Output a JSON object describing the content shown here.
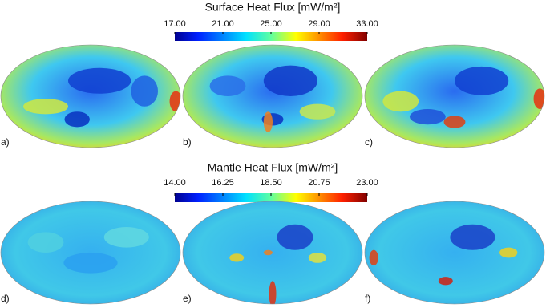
{
  "sections": [
    {
      "title": "Surface Heat Flux [mW/m²]",
      "colorbar_ticks": [
        {
          "value": 17,
          "label": "17.00"
        },
        {
          "value": 21,
          "label": "21.00"
        },
        {
          "value": 25,
          "label": "25.00"
        },
        {
          "value": 29,
          "label": "29.00"
        },
        {
          "value": 33,
          "label": "33.00"
        }
      ],
      "panels": [
        "a)",
        "b)",
        "c)"
      ]
    },
    {
      "title": "Mantle Heat Flux [mW/m²]",
      "colorbar_ticks": [
        {
          "value": 14,
          "label": "14.00"
        },
        {
          "value": 16.25,
          "label": "16.25"
        },
        {
          "value": 18.5,
          "label": "18.50"
        },
        {
          "value": 20.75,
          "label": "20.75"
        },
        {
          "value": 23,
          "label": "23.00"
        }
      ],
      "panels": [
        "d)",
        "e)",
        "f)"
      ]
    }
  ]
}
